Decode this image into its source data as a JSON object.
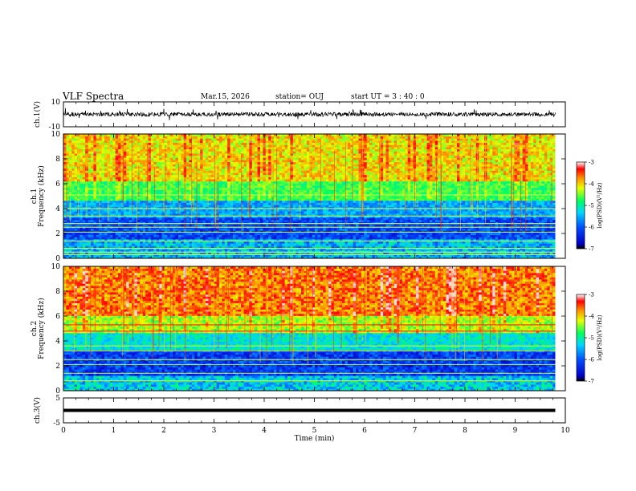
{
  "header": {
    "title": "VLF Spectra",
    "date": "Mar.15, 2026",
    "station": "station= OUJ",
    "start": "start  UT  =   3  : 40 : 0"
  },
  "chart_data": [
    {
      "type": "line",
      "name": "waveform-ch1",
      "ylabel": "ch.1(V)",
      "ylim": [
        -10,
        10
      ],
      "ytick_labels": [
        "10",
        "-10"
      ],
      "baseline": 0,
      "xlim": [
        0,
        10
      ],
      "trace_end": 9.8
    },
    {
      "type": "heatmap",
      "name": "spectrogram-ch1",
      "ylabel": "ch.1\nFrequency (kHz)",
      "ylim": [
        0,
        10
      ],
      "ytick_labels": [
        "0",
        "2",
        "4",
        "6",
        "8",
        "10"
      ],
      "xlim": [
        0,
        10
      ],
      "data_end": 9.8,
      "lines_khz": [
        0.3,
        0.5,
        0.8,
        1.4,
        2.1,
        2.5,
        2.8,
        3.4,
        4.0,
        5.1
      ],
      "colorbar": {
        "label": "log(PSD)(V²/Hz)",
        "range": [
          -7,
          -3
        ],
        "ticks": [
          "-3",
          "-4",
          "-5",
          "-6",
          "-7"
        ]
      }
    },
    {
      "type": "heatmap",
      "name": "spectrogram-ch2",
      "ylabel": "ch.2\nFrequency (kHz)",
      "ylim": [
        0,
        10
      ],
      "ytick_labels": [
        "0",
        "2",
        "4",
        "6",
        "8",
        "10"
      ],
      "xlim": [
        0,
        10
      ],
      "data_end": 9.8,
      "lines_khz": [
        0.8,
        1.4,
        2.1,
        2.5,
        3.2,
        3.6,
        4.8,
        5.3
      ],
      "colorbar": {
        "label": "log(PSD)(V²/Hz)",
        "range": [
          -7,
          -3
        ],
        "ticks": [
          "-3",
          "-4",
          "-5",
          "-6",
          "-7"
        ]
      }
    },
    {
      "type": "line",
      "name": "waveform-ch3",
      "ylabel": "ch.3(V)",
      "ylim": [
        -5,
        5
      ],
      "ytick_labels": [
        "5",
        "-5"
      ],
      "level": 0,
      "xlim": [
        0,
        10
      ],
      "trace_end": 9.8,
      "xlabel": "Time  (min)",
      "xtick_labels": [
        "0",
        "1",
        "2",
        "3",
        "4",
        "5",
        "6",
        "7",
        "8",
        "9",
        "10"
      ]
    }
  ]
}
